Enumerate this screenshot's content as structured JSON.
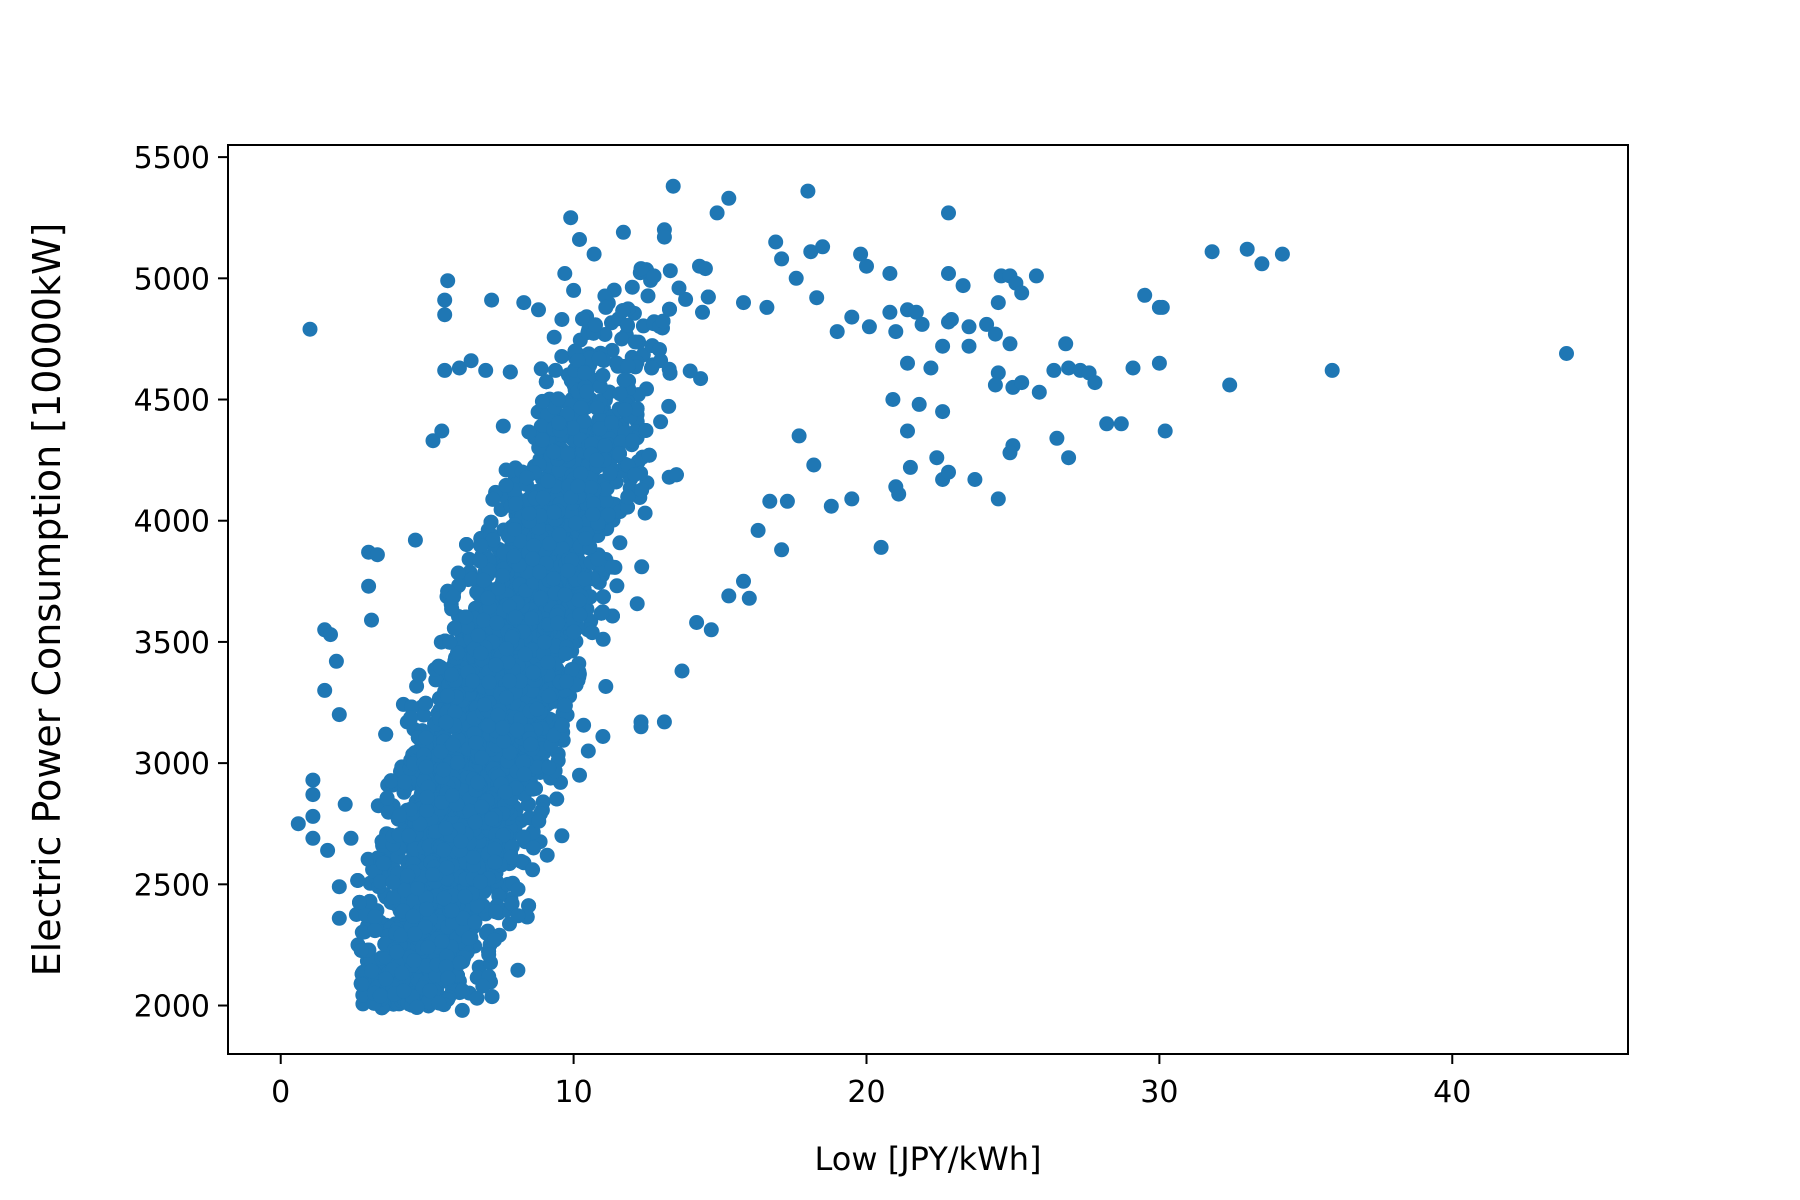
{
  "chart_data": {
    "type": "scatter",
    "title": "",
    "xlabel": "Low [JPY/kWh]",
    "ylabel": "Electric Power Consumption [10000kW]",
    "xlim": [
      -1.8,
      46
    ],
    "ylim": [
      1800,
      5550
    ],
    "xticks": [
      0,
      10,
      20,
      30,
      40
    ],
    "yticks": [
      2000,
      2500,
      3000,
      3500,
      4000,
      4500,
      5000,
      5500
    ],
    "grid": false,
    "legend": "none",
    "marker_color": "#1f77b4",
    "series": [
      {
        "name": "",
        "points": [
          [
            1.0,
            4790
          ],
          [
            0.6,
            2750
          ],
          [
            1.1,
            2930
          ],
          [
            1.1,
            2870
          ],
          [
            1.1,
            2780
          ],
          [
            1.1,
            2690
          ],
          [
            1.5,
            3550
          ],
          [
            1.5,
            3300
          ],
          [
            1.7,
            3530
          ],
          [
            1.9,
            3420
          ],
          [
            2.0,
            3200
          ],
          [
            1.6,
            2640
          ],
          [
            2.0,
            2490
          ],
          [
            2.0,
            2360
          ],
          [
            2.4,
            2690
          ],
          [
            2.2,
            2830
          ],
          [
            3.0,
            3870
          ],
          [
            3.3,
            3860
          ],
          [
            3.0,
            3730
          ],
          [
            3.1,
            3590
          ],
          [
            3.2,
            2050
          ],
          [
            3.4,
            2040
          ],
          [
            4.2,
            2060
          ],
          [
            4.6,
            3920
          ],
          [
            5.2,
            4330
          ],
          [
            5.5,
            4370
          ],
          [
            5.7,
            4990
          ],
          [
            5.6,
            4910
          ],
          [
            5.6,
            4850
          ],
          [
            5.6,
            4620
          ],
          [
            6.1,
            4630
          ],
          [
            6.5,
            4660
          ],
          [
            7.0,
            4620
          ],
          [
            7.2,
            4910
          ],
          [
            8.3,
            4900
          ],
          [
            8.8,
            4870
          ],
          [
            9.7,
            5020
          ],
          [
            9.9,
            5250
          ],
          [
            10.2,
            5160
          ],
          [
            10.7,
            5100
          ],
          [
            10.0,
            4950
          ],
          [
            9.6,
            4830
          ],
          [
            11.1,
            4880
          ],
          [
            11.7,
            5190
          ],
          [
            12.3,
            5040
          ],
          [
            13.1,
            5200
          ],
          [
            13.1,
            5170
          ],
          [
            13.4,
            5380
          ],
          [
            14.3,
            5050
          ],
          [
            14.5,
            5040
          ],
          [
            14.9,
            5270
          ],
          [
            15.3,
            5330
          ],
          [
            13.6,
            4960
          ],
          [
            14.4,
            4860
          ],
          [
            15.8,
            4900
          ],
          [
            16.6,
            4880
          ],
          [
            16.9,
            5150
          ],
          [
            17.1,
            5080
          ],
          [
            17.6,
            5000
          ],
          [
            18.0,
            5360
          ],
          [
            18.1,
            5110
          ],
          [
            18.5,
            5130
          ],
          [
            18.3,
            4920
          ],
          [
            19.0,
            4780
          ],
          [
            19.5,
            4840
          ],
          [
            19.8,
            5100
          ],
          [
            20.0,
            5050
          ],
          [
            20.8,
            5020
          ],
          [
            20.1,
            4800
          ],
          [
            20.8,
            4860
          ],
          [
            21.4,
            4870
          ],
          [
            21.7,
            4860
          ],
          [
            21.0,
            4780
          ],
          [
            21.9,
            4810
          ],
          [
            21.4,
            4650
          ],
          [
            22.2,
            4630
          ],
          [
            21.8,
            4480
          ],
          [
            22.8,
            5270
          ],
          [
            22.8,
            5020
          ],
          [
            23.3,
            4970
          ],
          [
            22.9,
            4830
          ],
          [
            23.5,
            4800
          ],
          [
            22.6,
            4720
          ],
          [
            23.5,
            4720
          ],
          [
            24.1,
            4810
          ],
          [
            24.4,
            4770
          ],
          [
            24.6,
            5010
          ],
          [
            24.9,
            5010
          ],
          [
            25.1,
            4980
          ],
          [
            25.3,
            4940
          ],
          [
            25.8,
            5010
          ],
          [
            24.5,
            4900
          ],
          [
            24.9,
            4730
          ],
          [
            24.5,
            4610
          ],
          [
            24.4,
            4560
          ],
          [
            25.0,
            4550
          ],
          [
            25.3,
            4570
          ],
          [
            25.9,
            4530
          ],
          [
            26.4,
            4620
          ],
          [
            26.8,
            4730
          ],
          [
            26.9,
            4630
          ],
          [
            27.3,
            4620
          ],
          [
            27.6,
            4610
          ],
          [
            27.8,
            4570
          ],
          [
            29.5,
            4930
          ],
          [
            30.0,
            4880
          ],
          [
            29.1,
            4630
          ],
          [
            30.0,
            4650
          ],
          [
            28.2,
            4400
          ],
          [
            28.7,
            4400
          ],
          [
            30.2,
            4370
          ],
          [
            26.5,
            4340
          ],
          [
            26.9,
            4260
          ],
          [
            25.0,
            4310
          ],
          [
            24.9,
            4280
          ],
          [
            23.7,
            4170
          ],
          [
            24.5,
            4090
          ],
          [
            22.6,
            4170
          ],
          [
            22.8,
            4200
          ],
          [
            22.4,
            4260
          ],
          [
            22.6,
            4450
          ],
          [
            21.5,
            4220
          ],
          [
            21.4,
            4370
          ],
          [
            20.9,
            4500
          ],
          [
            21.1,
            4110
          ],
          [
            21.0,
            4140
          ],
          [
            20.5,
            3890
          ],
          [
            19.5,
            4090
          ],
          [
            18.8,
            4060
          ],
          [
            18.2,
            4230
          ],
          [
            17.7,
            4350
          ],
          [
            17.3,
            4080
          ],
          [
            17.1,
            3880
          ],
          [
            16.3,
            3960
          ],
          [
            16.7,
            4080
          ],
          [
            15.8,
            3750
          ],
          [
            15.3,
            3690
          ],
          [
            16.0,
            3680
          ],
          [
            14.7,
            3550
          ],
          [
            14.2,
            3580
          ],
          [
            13.7,
            3380
          ],
          [
            13.1,
            3170
          ],
          [
            12.3,
            3170
          ],
          [
            12.3,
            3150
          ],
          [
            11.0,
            3110
          ],
          [
            10.5,
            3050
          ],
          [
            10.2,
            2950
          ],
          [
            9.6,
            2700
          ],
          [
            9.1,
            2620
          ],
          [
            8.6,
            2560
          ],
          [
            8.1,
            2480
          ],
          [
            7.9,
            2420
          ],
          [
            8.1,
            2370
          ],
          [
            7.3,
            2270
          ],
          [
            7.1,
            2210
          ],
          [
            7.1,
            2120
          ],
          [
            6.9,
            2080
          ],
          [
            6.7,
            2030
          ],
          [
            6.2,
            1980
          ],
          [
            5.4,
            2010
          ],
          [
            31.8,
            5110
          ],
          [
            33.0,
            5120
          ],
          [
            33.5,
            5060
          ],
          [
            34.2,
            5100
          ],
          [
            32.4,
            4560
          ],
          [
            35.9,
            4620
          ],
          [
            43.9,
            4690
          ],
          [
            30.1,
            4880
          ],
          [
            22.8,
            4820
          ]
        ],
        "dense_cloud": {
          "x_mean": 7.0,
          "x_sd": 2.3,
          "y_base": 1050,
          "y_slope": 290,
          "y_sd": 360,
          "count": 5000,
          "x_min": 2.5,
          "x_max": 22.0,
          "y_min": 1990,
          "y_max": 5050
        }
      }
    ]
  }
}
